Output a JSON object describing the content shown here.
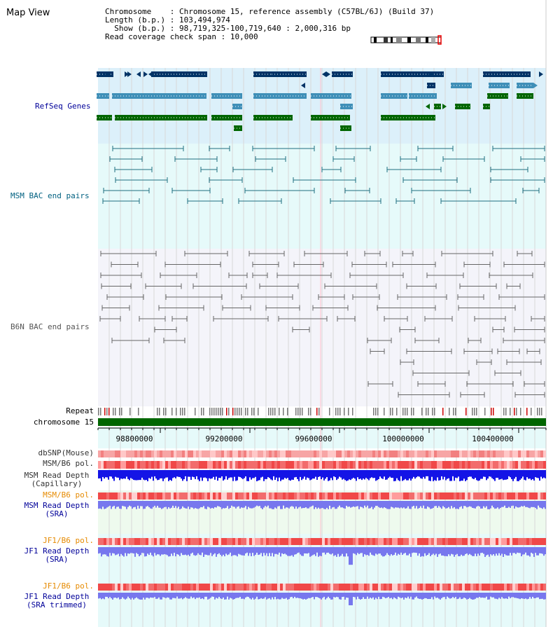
{
  "view": {
    "title": "Map View"
  },
  "info": {
    "chromosome_key": "Chromosome    ",
    "chromosome_value": "Chromosome 15, reference assembly (C57BL/6J) (Build 37)",
    "length_key": "Length (b.p.)",
    "length_value": "103,494,974",
    "show_key": "  Show (b.p.)",
    "show_value": "98,719,325-100,719,640 : 2,000,316 bp",
    "coverage_key": "Read coverage check span",
    "coverage_value": "10,000"
  },
  "tracks": {
    "refseq": "RefSeq Genes",
    "msm_bac": "MSM BAC end pairs",
    "b6n_bac": "B6N BAC end pairs",
    "repeat": "Repeat",
    "chromosome": "chromosome 15",
    "dbsnp": "dbSNP(Mouse)",
    "msm_b6_pol": "MSM/B6 pol.",
    "msm_depth_cap": "MSM Read Depth\n(Capillary)",
    "msm_b6_pol2": "MSM/B6 pol.",
    "msm_depth_sra": "MSM Read Depth\n(SRA)",
    "jf1_b6_pol": "JF1/B6 pol.",
    "jf1_depth_sra": "JF1 Read Depth\n(SRA)",
    "jf1_b6_pol2": "JF1/B6 pol.",
    "jf1_depth_trim": "JF1 Read Depth\n(SRA trimmed)"
  },
  "axis": {
    "ticks": [
      "98800000",
      "99200000",
      "99600000",
      "100000000",
      "100400000"
    ]
  },
  "colors": {
    "refseq_dark": "#003366",
    "refseq_mid": "#3f8fb8",
    "refseq_green": "#006600",
    "msm_bac": "#1f6f80",
    "b6n_bac": "#666666",
    "label_blue": "#000099",
    "label_orange": "#e68a00",
    "label_teal": "#006080",
    "chromosome_bar": "#006600",
    "depth_dark": "#1414e6",
    "depth_light": "#7777ee"
  }
}
